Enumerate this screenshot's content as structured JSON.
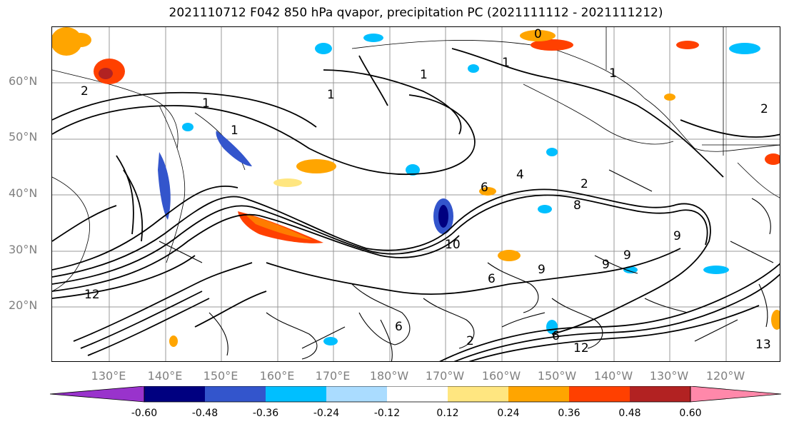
{
  "title": "2021110712 F042 850 hPa qvapor, precipitation PC (2021111112 - 2021111212)",
  "map": {
    "lat_labels": [
      "60°N",
      "50°N",
      "40°N",
      "30°N",
      "20°N"
    ],
    "lon_labels": [
      "130°E",
      "140°E",
      "150°E",
      "160°E",
      "170°E",
      "180°W",
      "170°W",
      "160°W",
      "150°W",
      "140°W",
      "130°W",
      "120°W"
    ],
    "contour_labels": [
      "1",
      "2",
      "0",
      "1",
      "1",
      "1",
      "1",
      "1",
      "2",
      "2",
      "4",
      "6",
      "8",
      "9",
      "9",
      "9",
      "10",
      "12",
      "12",
      "13",
      "2",
      "6",
      "6",
      "6",
      "9"
    ],
    "land_color": "#ffffff",
    "contour_color": "#000000",
    "grid_color": "#999999"
  },
  "colorbar": {
    "tick_labels": [
      "-0.60",
      "-0.48",
      "-0.36",
      "-0.24",
      "-0.12",
      "0.12",
      "0.24",
      "0.36",
      "0.48",
      "0.60"
    ],
    "colors": [
      "#9933cc",
      "#000080",
      "#3355cc",
      "#00bfff",
      "#aadcff",
      "#ffffff",
      "#ffe680",
      "#ffa500",
      "#ff4000",
      "#b22222",
      "#ff88aa"
    ]
  }
}
